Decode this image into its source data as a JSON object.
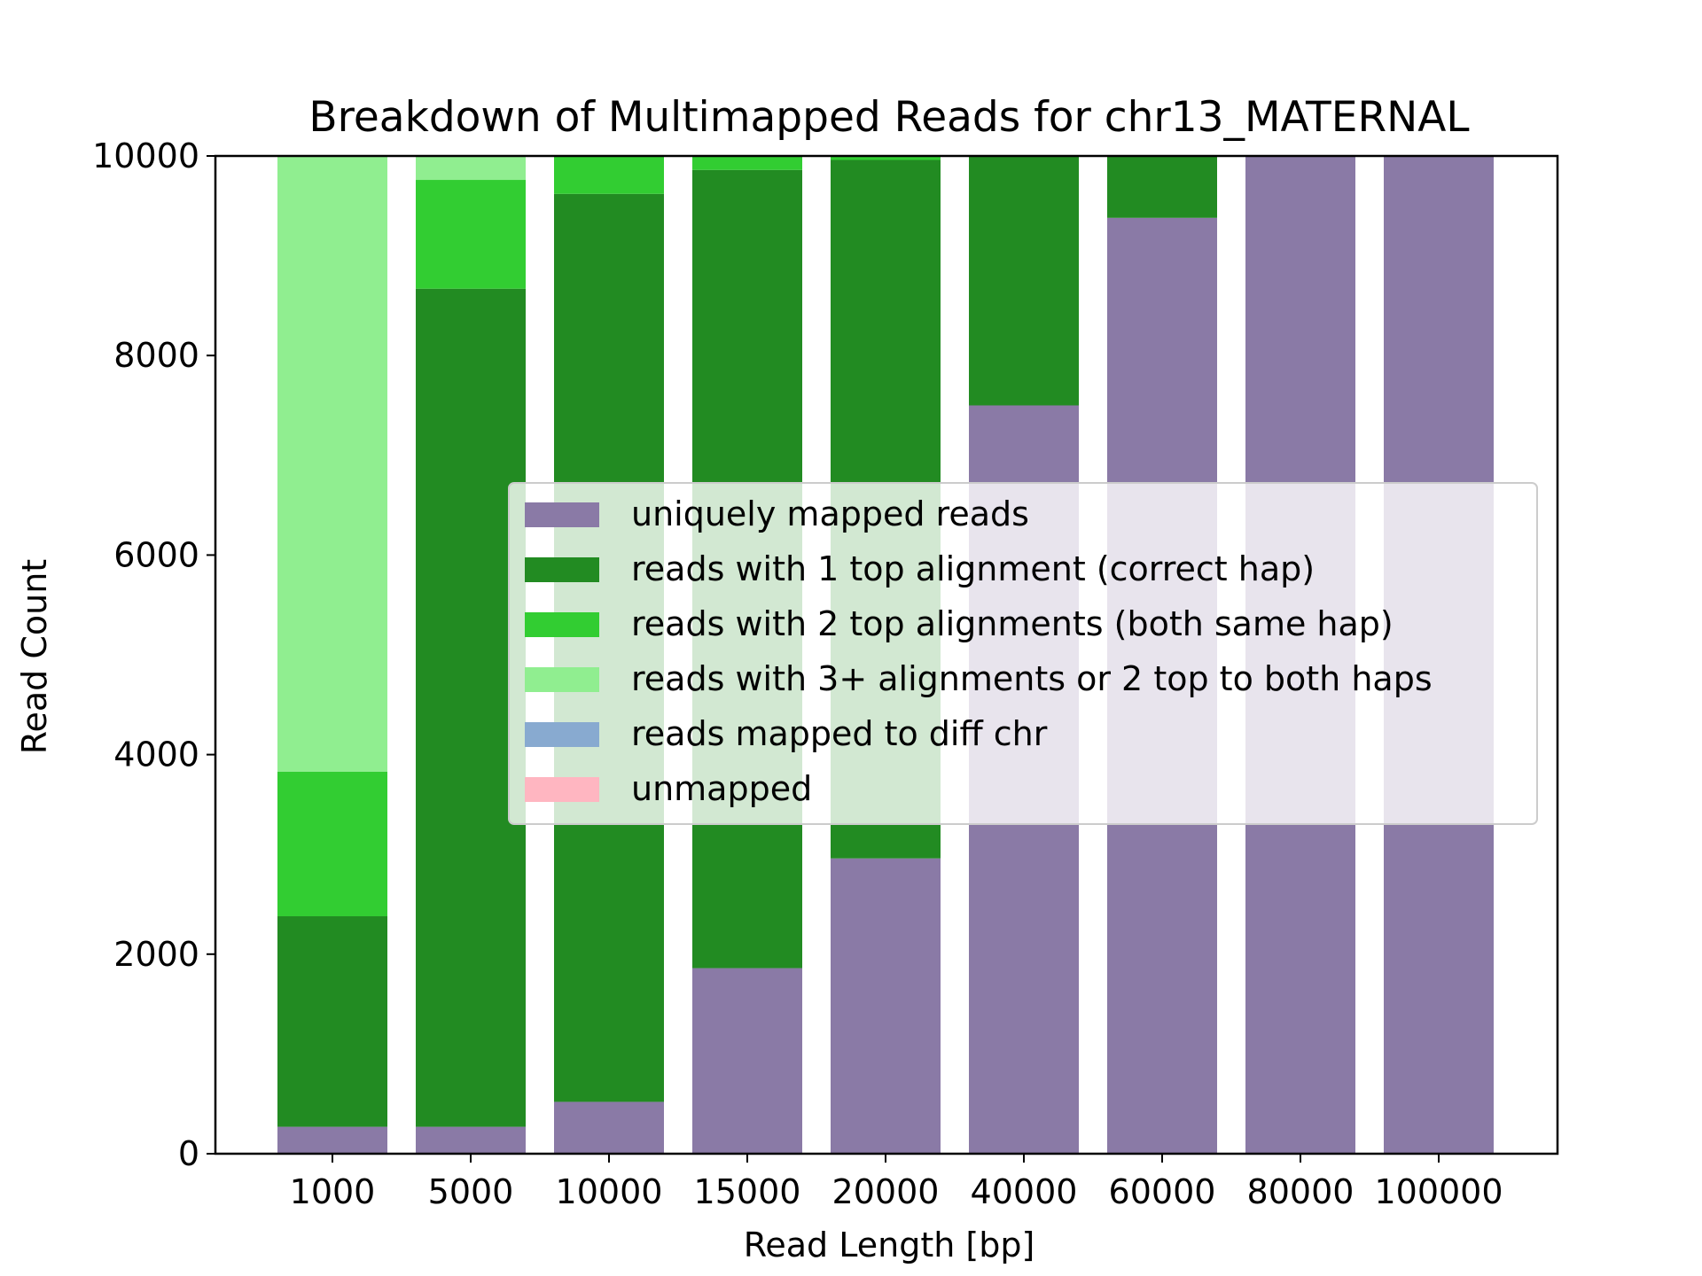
{
  "chart_data": {
    "type": "bar",
    "stacked": true,
    "title": "Breakdown of Multimapped Reads for chr13_MATERNAL",
    "xlabel": "Read Length [bp]",
    "ylabel": "Read Count",
    "ylim": [
      0,
      10000
    ],
    "yticks": [
      0,
      2000,
      4000,
      6000,
      8000,
      10000
    ],
    "categories": [
      "1000",
      "5000",
      "10000",
      "15000",
      "20000",
      "40000",
      "60000",
      "80000",
      "100000"
    ],
    "series": [
      {
        "name": "uniquely mapped reads",
        "color": "#8a7aa6",
        "values": [
          270,
          270,
          520,
          1860,
          2960,
          7500,
          9380,
          10000,
          10000
        ]
      },
      {
        "name": "reads with 1 top alignment (correct hap)",
        "color": "#228b22",
        "values": [
          2110,
          8400,
          9100,
          8000,
          7000,
          2500,
          620,
          0,
          0
        ]
      },
      {
        "name": "reads with 2 top alignments (both same hap)",
        "color": "#32cd32",
        "values": [
          1450,
          1090,
          380,
          140,
          40,
          0,
          0,
          0,
          0
        ]
      },
      {
        "name": "reads with 3+ alignments or 2 top to both haps",
        "color": "#90ee90",
        "values": [
          6170,
          240,
          0,
          0,
          0,
          0,
          0,
          0,
          0
        ]
      },
      {
        "name": "reads mapped to diff chr",
        "color": "#88aad0",
        "values": [
          0,
          0,
          0,
          0,
          0,
          0,
          0,
          0,
          0
        ]
      },
      {
        "name": "unmapped",
        "color": "#ffb6c1",
        "values": [
          0,
          0,
          0,
          0,
          0,
          0,
          0,
          0,
          0
        ]
      }
    ],
    "legend_position": "center-right",
    "grid": false
  }
}
